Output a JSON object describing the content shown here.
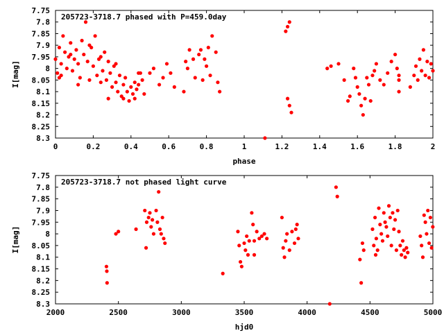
{
  "chart_data": [
    {
      "type": "scatter",
      "title": "205723-3718.7 phased with P=459.0day",
      "xlabel": "phase",
      "ylabel": "I[mag]",
      "xlim": [
        0,
        2
      ],
      "ylim": [
        8.3,
        7.75
      ],
      "y_inverted": true,
      "grid": false,
      "legend": "none",
      "marker": "filled-circle",
      "color": "#ff0000",
      "xticks": [
        "0",
        "0.2",
        "0.4",
        "0.6",
        "0.8",
        "1",
        "1.2",
        "1.4",
        "1.6",
        "1.8",
        "2"
      ],
      "yticks": [
        "7.75",
        "7.8",
        "7.85",
        "7.9",
        "7.95",
        "8",
        "8.05",
        "8.1",
        "8.15",
        "8.2",
        "8.25",
        "8.3"
      ],
      "series": [
        {
          "points": [
            [
              0.0,
              7.96
            ],
            [
              0.01,
              8.02
            ],
            [
              0.02,
              7.91
            ],
            [
              0.02,
              8.04
            ],
            [
              0.03,
              7.98
            ],
            [
              0.04,
              7.86
            ],
            [
              0.05,
              7.93
            ],
            [
              0.06,
              8.0
            ],
            [
              0.07,
              7.95
            ],
            [
              0.08,
              7.89
            ],
            [
              0.09,
              8.01
            ],
            [
              0.1,
              7.96
            ],
            [
              0.11,
              7.92
            ],
            [
              0.12,
              7.98
            ],
            [
              0.13,
              8.04
            ],
            [
              0.14,
              7.88
            ],
            [
              0.15,
              7.94
            ],
            [
              0.16,
              7.8
            ],
            [
              0.17,
              7.97
            ],
            [
              0.18,
              8.05
            ],
            [
              0.19,
              7.91
            ],
            [
              0.2,
              7.99
            ],
            [
              0.21,
              7.86
            ],
            [
              0.22,
              8.03
            ],
            [
              0.23,
              7.96
            ],
            [
              0.24,
              7.95
            ],
            [
              0.25,
              8.01
            ],
            [
              0.26,
              7.93
            ],
            [
              0.27,
              8.05
            ],
            [
              0.28,
              7.97
            ],
            [
              0.29,
              8.02
            ],
            [
              0.3,
              8.08
            ],
            [
              0.31,
              7.99
            ],
            [
              0.32,
              8.06
            ],
            [
              0.33,
              8.1
            ],
            [
              0.34,
              8.03
            ],
            [
              0.35,
              8.12
            ],
            [
              0.36,
              8.07
            ],
            [
              0.37,
              8.04
            ],
            [
              0.38,
              8.1
            ],
            [
              0.39,
              8.14
            ],
            [
              0.4,
              8.08
            ],
            [
              0.41,
              8.11
            ],
            [
              0.42,
              8.06
            ],
            [
              0.43,
              8.09
            ],
            [
              0.44,
              8.07
            ],
            [
              0.45,
              8.02
            ],
            [
              0.46,
              8.05
            ],
            [
              0.47,
              8.11
            ],
            [
              0.5,
              8.02
            ],
            [
              0.52,
              8.0
            ],
            [
              0.55,
              8.07
            ],
            [
              0.57,
              8.04
            ],
            [
              0.59,
              7.98
            ],
            [
              0.61,
              8.02
            ],
            [
              0.63,
              8.08
            ],
            [
              0.68,
              8.1
            ],
            [
              0.69,
              7.97
            ],
            [
              0.7,
              8.0
            ],
            [
              0.71,
              7.92
            ],
            [
              0.73,
              7.96
            ],
            [
              0.74,
              8.04
            ],
            [
              0.76,
              7.94
            ],
            [
              0.77,
              7.92
            ],
            [
              0.78,
              8.05
            ],
            [
              0.79,
              7.96
            ],
            [
              0.8,
              7.99
            ],
            [
              0.81,
              7.91
            ],
            [
              0.82,
              8.03
            ],
            [
              0.83,
              7.86
            ],
            [
              0.85,
              7.93
            ],
            [
              0.86,
              8.06
            ],
            [
              0.87,
              8.1
            ],
            [
              0.03,
              8.03
            ],
            [
              0.08,
              7.94
            ],
            [
              0.12,
              8.07
            ],
            [
              0.18,
              7.9
            ],
            [
              0.24,
              8.06
            ],
            [
              0.28,
              8.13
            ],
            [
              0.32,
              7.98
            ],
            [
              0.36,
              8.13
            ],
            [
              0.42,
              8.13
            ],
            [
              0.44,
              8.02
            ],
            [
              1.11,
              8.3
            ],
            [
              1.22,
              7.84
            ],
            [
              1.23,
              7.82
            ],
            [
              1.24,
              7.8
            ],
            [
              1.23,
              8.13
            ],
            [
              1.24,
              8.16
            ],
            [
              1.25,
              8.19
            ],
            [
              1.44,
              8.0
            ],
            [
              1.46,
              7.99
            ],
            [
              1.5,
              7.98
            ],
            [
              1.53,
              8.05
            ],
            [
              1.55,
              8.14
            ],
            [
              1.56,
              8.12
            ],
            [
              1.58,
              8.0
            ],
            [
              1.59,
              8.04
            ],
            [
              1.6,
              8.08
            ],
            [
              1.61,
              8.11
            ],
            [
              1.62,
              8.16
            ],
            [
              1.63,
              8.2
            ],
            [
              1.64,
              8.13
            ],
            [
              1.65,
              8.04
            ],
            [
              1.66,
              8.07
            ],
            [
              1.67,
              8.14
            ],
            [
              1.68,
              8.03
            ],
            [
              1.7,
              7.98
            ],
            [
              1.72,
              8.05
            ],
            [
              1.74,
              8.07
            ],
            [
              1.76,
              8.02
            ],
            [
              1.78,
              7.97
            ],
            [
              1.8,
              7.94
            ],
            [
              1.81,
              8.0
            ],
            [
              1.82,
              8.05
            ],
            [
              1.82,
              8.1
            ],
            [
              1.82,
              8.03
            ],
            [
              1.88,
              8.08
            ],
            [
              1.9,
              8.03
            ],
            [
              1.91,
              7.99
            ],
            [
              1.92,
              8.05
            ],
            [
              1.93,
              7.96
            ],
            [
              1.94,
              8.01
            ],
            [
              1.95,
              7.92
            ],
            [
              1.96,
              8.03
            ],
            [
              1.97,
              7.97
            ],
            [
              1.98,
              8.04
            ],
            [
              1.99,
              7.98
            ],
            [
              2.0,
              8.01
            ],
            [
              1.69,
              8.01
            ]
          ]
        }
      ]
    },
    {
      "type": "scatter",
      "title": "205723-3718.7 not phased light curve",
      "xlabel": "hjd0",
      "ylabel": "I[mag]",
      "xlim": [
        2000,
        5000
      ],
      "ylim": [
        8.3,
        7.75
      ],
      "y_inverted": true,
      "grid": false,
      "legend": "none",
      "marker": "filled-circle",
      "color": "#ff0000",
      "xticks": [
        "2000",
        "2500",
        "3000",
        "3500",
        "4000",
        "4500",
        "5000"
      ],
      "yticks": [
        "7.75",
        "7.8",
        "7.85",
        "7.9",
        "7.95",
        "8",
        "8.05",
        "8.1",
        "8.15",
        "8.2",
        "8.25",
        "8.3"
      ],
      "series": [
        {
          "points": [
            [
              2405,
              8.14
            ],
            [
              2408,
              8.16
            ],
            [
              2410,
              8.21
            ],
            [
              2480,
              8.0
            ],
            [
              2500,
              7.99
            ],
            [
              2640,
              7.98
            ],
            [
              2710,
              7.9
            ],
            [
              2720,
              8.06
            ],
            [
              2725,
              7.95
            ],
            [
              2740,
              7.93
            ],
            [
              2750,
              7.91
            ],
            [
              2760,
              7.97
            ],
            [
              2770,
              7.94
            ],
            [
              2780,
              8.0
            ],
            [
              2800,
              7.9
            ],
            [
              2810,
              7.95
            ],
            [
              2820,
              7.82
            ],
            [
              2830,
              7.98
            ],
            [
              2840,
              8.0
            ],
            [
              2850,
              7.93
            ],
            [
              2860,
              8.02
            ],
            [
              2870,
              8.04
            ],
            [
              3330,
              8.17
            ],
            [
              3450,
              7.99
            ],
            [
              3460,
              8.05
            ],
            [
              3470,
              8.12
            ],
            [
              3480,
              8.14
            ],
            [
              3500,
              8.04
            ],
            [
              3510,
              8.07
            ],
            [
              3520,
              8.01
            ],
            [
              3530,
              8.09
            ],
            [
              3540,
              8.03
            ],
            [
              3560,
              7.91
            ],
            [
              3570,
              7.96
            ],
            [
              3580,
              8.03
            ],
            [
              3580,
              8.09
            ],
            [
              3600,
              7.99
            ],
            [
              3620,
              8.02
            ],
            [
              3640,
              8.01
            ],
            [
              3660,
              8.0
            ],
            [
              3680,
              8.02
            ],
            [
              3800,
              7.93
            ],
            [
              3810,
              8.06
            ],
            [
              3820,
              8.1
            ],
            [
              3830,
              8.03
            ],
            [
              3840,
              8.0
            ],
            [
              3860,
              8.07
            ],
            [
              3880,
              7.99
            ],
            [
              3900,
              8.04
            ],
            [
              3910,
              7.98
            ],
            [
              3920,
              7.96
            ],
            [
              3930,
              8.02
            ],
            [
              4180,
              8.3
            ],
            [
              4230,
              7.8
            ],
            [
              4240,
              7.84
            ],
            [
              4420,
              8.11
            ],
            [
              4430,
              8.21
            ],
            [
              4440,
              8.04
            ],
            [
              4450,
              8.07
            ],
            [
              4520,
              7.98
            ],
            [
              4530,
              8.05
            ],
            [
              4540,
              7.93
            ],
            [
              4550,
              8.02
            ],
            [
              4560,
              8.07
            ],
            [
              4570,
              7.89
            ],
            [
              4580,
              7.96
            ],
            [
              4590,
              8.0
            ],
            [
              4600,
              8.03
            ],
            [
              4610,
              7.91
            ],
            [
              4620,
              7.95
            ],
            [
              4630,
              7.97
            ],
            [
              4640,
              8.01
            ],
            [
              4650,
              7.88
            ],
            [
              4660,
              7.93
            ],
            [
              4670,
              8.05
            ],
            [
              4680,
              7.91
            ],
            [
              4690,
              7.98
            ],
            [
              4700,
              7.94
            ],
            [
              4710,
              8.07
            ],
            [
              4720,
              7.9
            ],
            [
              4730,
              7.99
            ],
            [
              4740,
              8.05
            ],
            [
              4750,
              8.09
            ],
            [
              4760,
              8.03
            ],
            [
              4770,
              8.07
            ],
            [
              4780,
              8.1
            ],
            [
              4790,
              8.06
            ],
            [
              4800,
              8.08
            ],
            [
              4900,
              8.01
            ],
            [
              4910,
              8.05
            ],
            [
              4920,
              8.1
            ],
            [
              4930,
              7.92
            ],
            [
              4940,
              7.95
            ],
            [
              4950,
              8.0
            ],
            [
              4960,
              7.9
            ],
            [
              4970,
              8.04
            ],
            [
              4980,
              7.93
            ],
            [
              4990,
              8.06
            ],
            [
              4999,
              7.97
            ],
            [
              4545,
              8.09
            ]
          ]
        }
      ]
    }
  ]
}
